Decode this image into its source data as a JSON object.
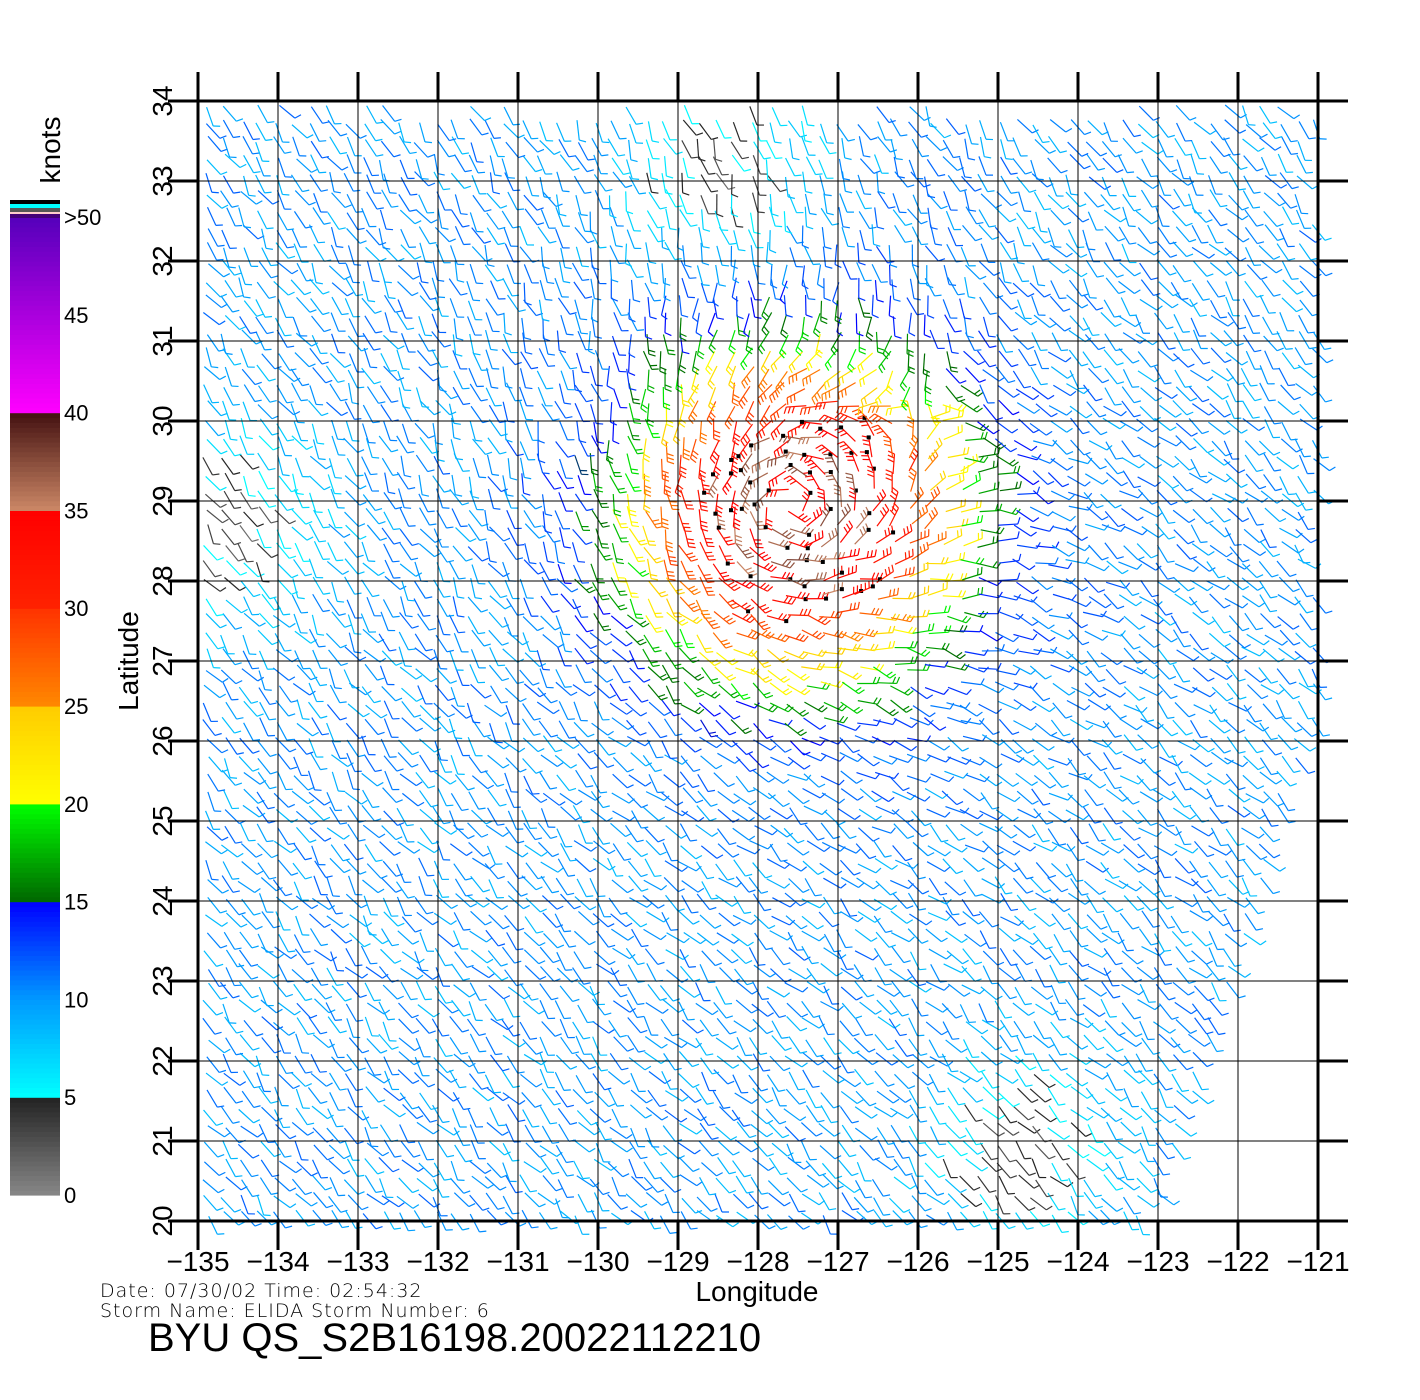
{
  "chart_data": {
    "type": "wind-barb",
    "xlabel": "Longitude",
    "ylabel": "Latitude",
    "xlim": [
      -135,
      -121
    ],
    "ylim": [
      20,
      34
    ],
    "x_ticks": [
      "-135",
      "-134",
      "-133",
      "-132",
      "-131",
      "-130",
      "-129",
      "-128",
      "-127",
      "-126",
      "-125",
      "-124",
      "-123",
      "-122",
      "-121"
    ],
    "y_ticks": [
      "20",
      "21",
      "22",
      "23",
      "24",
      "25",
      "26",
      "27",
      "28",
      "29",
      "30",
      "31",
      "32",
      "33",
      "34"
    ],
    "grid": true,
    "colorbar": {
      "title": "knots",
      "ticks": [
        "0",
        "5",
        "10",
        "15",
        "20",
        "25",
        "30",
        "35",
        "40",
        "45",
        ">50"
      ],
      "stops": [
        {
          "v": 0,
          "c": "#888888"
        },
        {
          "v": 5,
          "c": "#222222"
        },
        {
          "v": 5.01,
          "c": "#00ffff"
        },
        {
          "v": 10,
          "c": "#0099ff"
        },
        {
          "v": 15,
          "c": "#0000ff"
        },
        {
          "v": 15.01,
          "c": "#006600"
        },
        {
          "v": 20,
          "c": "#00ff00"
        },
        {
          "v": 20.01,
          "c": "#ffff00"
        },
        {
          "v": 25,
          "c": "#ffcc00"
        },
        {
          "v": 25.01,
          "c": "#ff8800"
        },
        {
          "v": 30,
          "c": "#ff3300"
        },
        {
          "v": 30.01,
          "c": "#ff2200"
        },
        {
          "v": 35,
          "c": "#ff0000"
        },
        {
          "v": 35.01,
          "c": "#cc8866"
        },
        {
          "v": 40,
          "c": "#441111"
        },
        {
          "v": 40.01,
          "c": "#ff00ff"
        },
        {
          "v": 50,
          "c": "#5500bb"
        }
      ]
    },
    "storm_center": {
      "lon": -127.6,
      "lat": 28.9,
      "max_speed_kt": 36
    },
    "background_speed_kt": 10,
    "calm_areas": [
      {
        "lon": -128.5,
        "lat": 33.3
      },
      {
        "lon": -124.8,
        "lat": 21.0
      },
      {
        "lon": -134.7,
        "lat": 28.8
      }
    ]
  },
  "info": {
    "line1": "Date: 07/30/02   Time: 02:54:32",
    "line2": "Storm  Name: ELIDA   Storm  Number: 6",
    "title": "BYU  QS_S2B16198.20022112210"
  }
}
